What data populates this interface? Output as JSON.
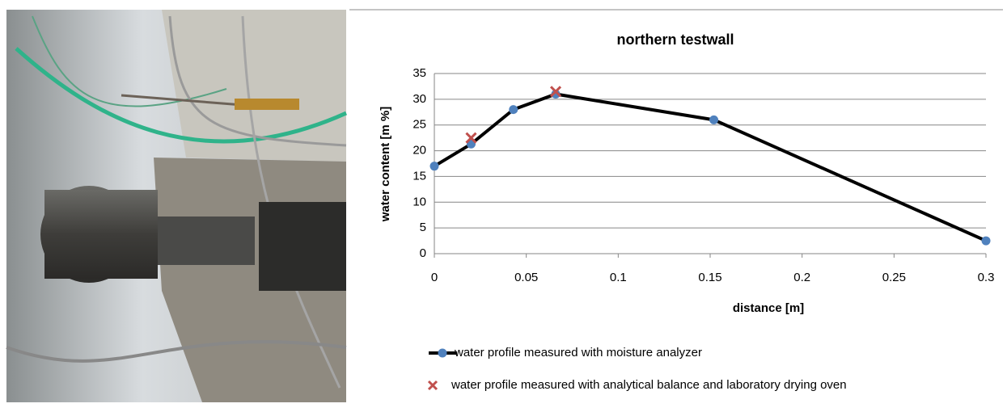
{
  "chart_data": {
    "type": "line",
    "title": "northern testwall",
    "x_label": "distance [m]",
    "y_label": "water content [m %]",
    "xlim": [
      0,
      0.3
    ],
    "xticks": [
      0,
      0.05,
      0.1,
      0.15,
      0.2,
      0.25,
      0.3
    ],
    "ylim": [
      0,
      35
    ],
    "yticks": [
      0,
      5,
      10,
      15,
      20,
      25,
      30,
      35
    ],
    "grid": true,
    "legend": "bottom",
    "series": [
      {
        "name": "water profile measured with moisture analyzer",
        "type": "line",
        "color": "#000000",
        "marker_color": "#4f81bd",
        "x": [
          0,
          0.02,
          0.043,
          0.066,
          0.152,
          0.3
        ],
        "values": [
          17,
          21.3,
          28,
          31,
          26,
          2.5
        ]
      },
      {
        "name": "water profile measured with analytical balance and laboratory drying oven",
        "type": "scatter",
        "color": "#c0504d",
        "x": [
          0.02,
          0.066
        ],
        "values": [
          22.5,
          31.5
        ]
      }
    ]
  }
}
